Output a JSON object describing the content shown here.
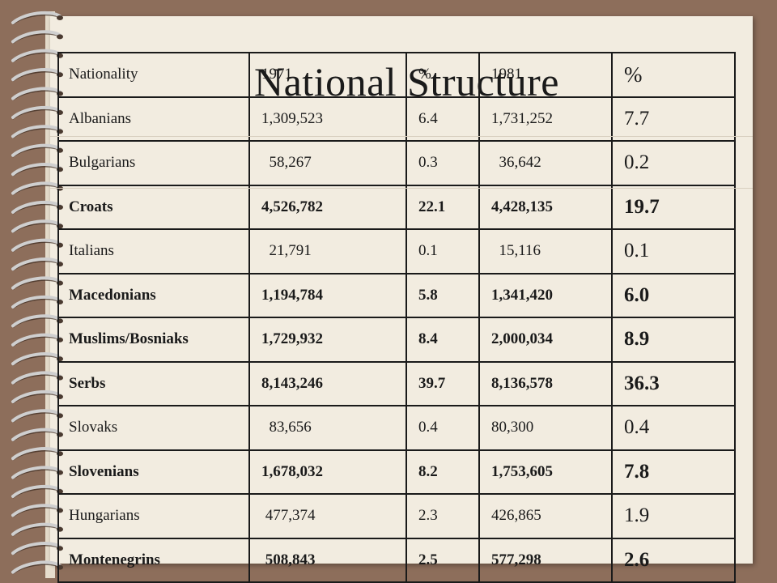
{
  "slide": {
    "title": "National Structure"
  },
  "table": {
    "headers": [
      "Nationality",
      "1971",
      "%",
      "1981",
      "%"
    ],
    "rows": [
      {
        "nationality": "Albanians",
        "y1971": "1,309,523",
        "pct1971": "6.4",
        "y1981": "1,731,252",
        "pct1981": "7.7",
        "bold": false
      },
      {
        "nationality": "Bulgarians",
        "y1971": "  58,267",
        "pct1971": "0.3",
        "y1981": "  36,642",
        "pct1981": "0.2",
        "bold": false
      },
      {
        "nationality": "Croats",
        "y1971": "4,526,782",
        "pct1971": "22.1",
        "y1981": "4,428,135",
        "pct1981": "19.7",
        "bold": true
      },
      {
        "nationality": "Italians",
        "y1971": "  21,791",
        "pct1971": "0.1",
        "y1981": "  15,116",
        "pct1981": "0.1",
        "bold": false
      },
      {
        "nationality": "Macedonians",
        "y1971": "1,194,784",
        "pct1971": "5.8",
        "y1981": "1,341,420",
        "pct1981": "6.0",
        "bold": true
      },
      {
        "nationality": "Muslims/Bosniaks",
        "y1971": "1,729,932",
        "pct1971": "8.4",
        "y1981": "2,000,034",
        "pct1981": "8.9",
        "bold": true
      },
      {
        "nationality": "Serbs",
        "y1971": "8,143,246",
        "pct1971": "39.7",
        "y1981": "8,136,578",
        "pct1981": "36.3",
        "bold": true
      },
      {
        "nationality": "Slovaks",
        "y1971": "  83,656",
        "pct1971": "0.4",
        "y1981": "80,300",
        "pct1981": "0.4",
        "bold": false
      },
      {
        "nationality": "Slovenians",
        "y1971": "1,678,032",
        "pct1971": "8.2",
        "y1981": "1,753,605",
        "pct1981": "7.8",
        "bold": true
      },
      {
        "nationality": "Hungarians",
        "y1971": " 477,374",
        "pct1971": "2.3",
        "y1981": "426,865",
        "pct1981": "1.9",
        "bold": false
      },
      {
        "nationality": "Montenegrins",
        "y1971": " 508,843",
        "pct1971": "2.5",
        "y1981": "577,298",
        "pct1981": "2.6",
        "bold": true
      }
    ]
  },
  "colors": {
    "background": "#8d6e5b",
    "paper": "#f2ece0",
    "text": "#1a1a1a"
  }
}
